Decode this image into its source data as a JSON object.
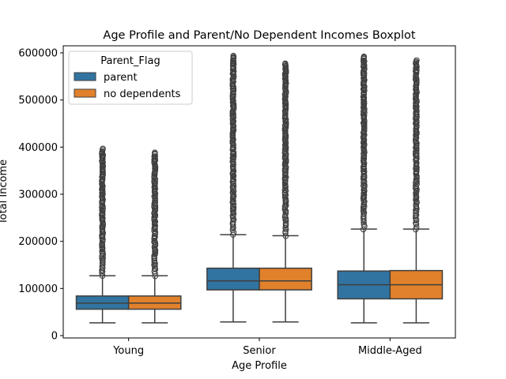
{
  "chart_data": {
    "type": "boxplot",
    "title": "Age Profile and Parent/No Dependent Incomes Boxplot",
    "xlabel": "Age Profile",
    "ylabel": "Total Income",
    "ylim": [
      -5000,
      615000
    ],
    "yticks": [
      0,
      100000,
      200000,
      300000,
      400000,
      500000,
      600000
    ],
    "ytick_labels": [
      "0",
      "100000",
      "200000",
      "300000",
      "400000",
      "500000",
      "600000"
    ],
    "categories": [
      "Young",
      "Senior",
      "Middle-Aged"
    ],
    "legend": {
      "title": "Parent_Flag",
      "placement": "upper-left"
    },
    "series": [
      {
        "name": "parent",
        "color": "#3274a1",
        "boxes": [
          {
            "whisker_low": 27000,
            "q1": 56000,
            "median": 69000,
            "q3": 84000,
            "whisker_high": 127000,
            "outlier_max": 396000
          },
          {
            "whisker_low": 29000,
            "q1": 97000,
            "median": 116000,
            "q3": 143000,
            "whisker_high": 214000,
            "outlier_max": 594000
          },
          {
            "whisker_low": 27000,
            "q1": 78000,
            "median": 108000,
            "q3": 137000,
            "whisker_high": 226000,
            "outlier_max": 593000
          }
        ]
      },
      {
        "name": "no dependents",
        "color": "#e1812c",
        "boxes": [
          {
            "whisker_low": 27000,
            "q1": 56000,
            "median": 69000,
            "q3": 84000,
            "whisker_high": 127000,
            "outlier_max": 388000
          },
          {
            "whisker_low": 29000,
            "q1": 97000,
            "median": 116000,
            "q3": 143000,
            "whisker_high": 212000,
            "outlier_max": 577000
          },
          {
            "whisker_low": 27000,
            "q1": 78000,
            "median": 108000,
            "q3": 138000,
            "whisker_high": 226000,
            "outlier_max": 584000
          }
        ]
      }
    ]
  }
}
